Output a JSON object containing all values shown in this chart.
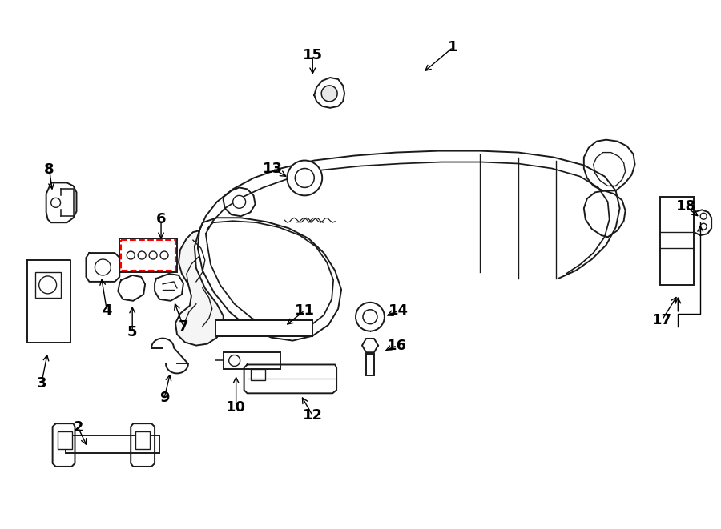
{
  "bg_color": "#ffffff",
  "line_color": "#1a1a1a",
  "red_color": "#ff0000",
  "label_fontsize": 13,
  "figsize": [
    9.0,
    6.61
  ],
  "dpi": 100
}
